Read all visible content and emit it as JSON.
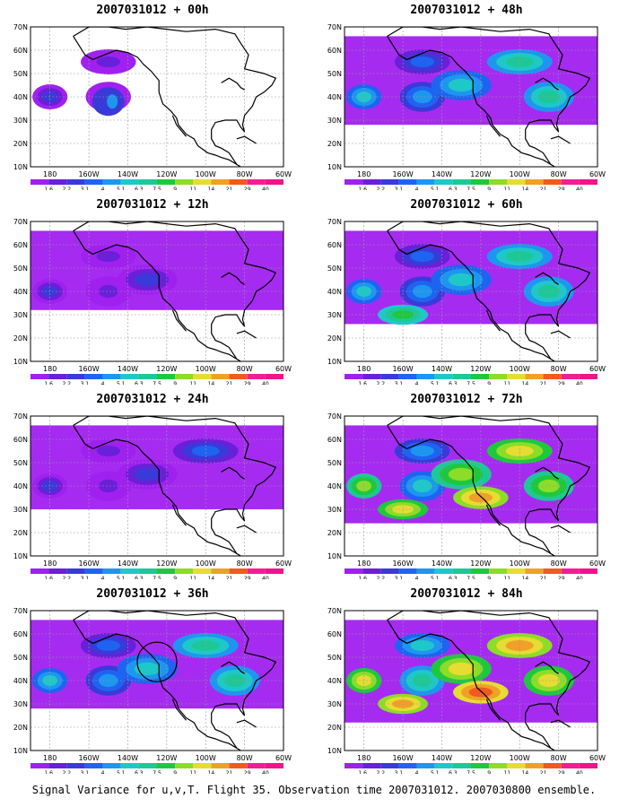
{
  "panels": [
    {
      "title": "2007031012 + 00h",
      "intensity": 0
    },
    {
      "title": "2007031012 + 48h",
      "intensity": 3
    },
    {
      "title": "2007031012 + 12h",
      "intensity": 1
    },
    {
      "title": "2007031012 + 60h",
      "intensity": 4
    },
    {
      "title": "2007031012 + 24h",
      "intensity": 2
    },
    {
      "title": "2007031012 + 72h",
      "intensity": 5
    },
    {
      "title": "2007031012 + 36h",
      "intensity": 3
    },
    {
      "title": "2007031012 + 84h",
      "intensity": 6
    }
  ],
  "map": {
    "lon_ticks": [
      "180",
      "160W",
      "140W",
      "120W",
      "100W",
      "80W",
      "60W"
    ],
    "lat_ticks": [
      "10N",
      "20N",
      "30N",
      "40N",
      "50N",
      "60N",
      "70N"
    ]
  },
  "colorbar": {
    "labels": [
      "1.6",
      "2.2",
      "3.1",
      "4",
      "5.1",
      "6.3",
      "7.5",
      "9",
      "11",
      "14",
      "21",
      "29",
      "40"
    ],
    "colors": [
      "#a020f0",
      "#6a1fd8",
      "#3a3ad8",
      "#1e64f0",
      "#1e96f0",
      "#1ec8c8",
      "#1ec896",
      "#1ec83c",
      "#8cdc28",
      "#e6dc32",
      "#f0a028",
      "#f05a1e",
      "#f01e96",
      "#f0148c"
    ]
  },
  "caption": "Signal Variance for u,v,T. Flight 35. Observation time 2007031012. 2007030800 ensemble."
}
